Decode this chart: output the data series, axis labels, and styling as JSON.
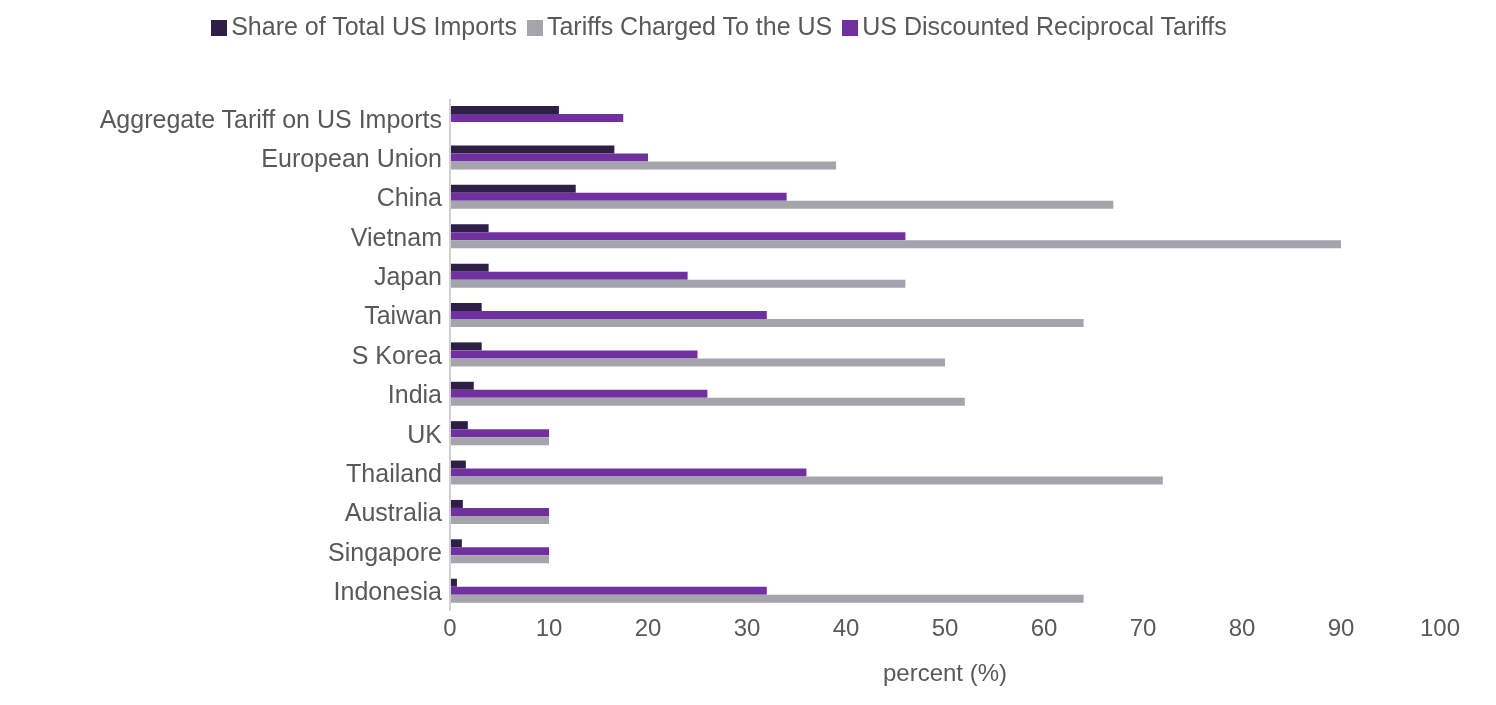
{
  "chart_data": {
    "type": "bar",
    "orientation": "horizontal",
    "xlabel": "percent (%)",
    "categories": [
      "Aggregate Tariff on US Imports",
      "European Union",
      "China",
      "Vietnam",
      "Japan",
      "Taiwan",
      "S Korea",
      "India",
      "UK",
      "Thailand",
      "Australia",
      "Singapore",
      "Indonesia"
    ],
    "series": [
      {
        "name": "Share of Total US Imports",
        "color": "#2e1f47",
        "values": [
          11.0,
          16.6,
          12.7,
          3.9,
          3.9,
          3.2,
          3.2,
          2.4,
          1.8,
          1.6,
          1.3,
          1.2,
          0.7
        ]
      },
      {
        "name": "US Discounted Reciprocal Tariffs",
        "color": "#7030a0",
        "values": [
          17.5,
          20,
          34,
          46,
          24,
          32,
          25,
          26,
          10,
          36,
          10,
          10,
          32
        ]
      },
      {
        "name": "Tariffs Charged To the US",
        "color": "#a5a3ab",
        "values": [
          null,
          39,
          67,
          90,
          46,
          64,
          50,
          52,
          10,
          72,
          10,
          10,
          64
        ]
      }
    ],
    "xlim": [
      0,
      100
    ],
    "xticks": [
      0,
      10,
      20,
      30,
      40,
      50,
      60,
      70,
      80,
      90,
      100
    ],
    "legend": "top"
  }
}
